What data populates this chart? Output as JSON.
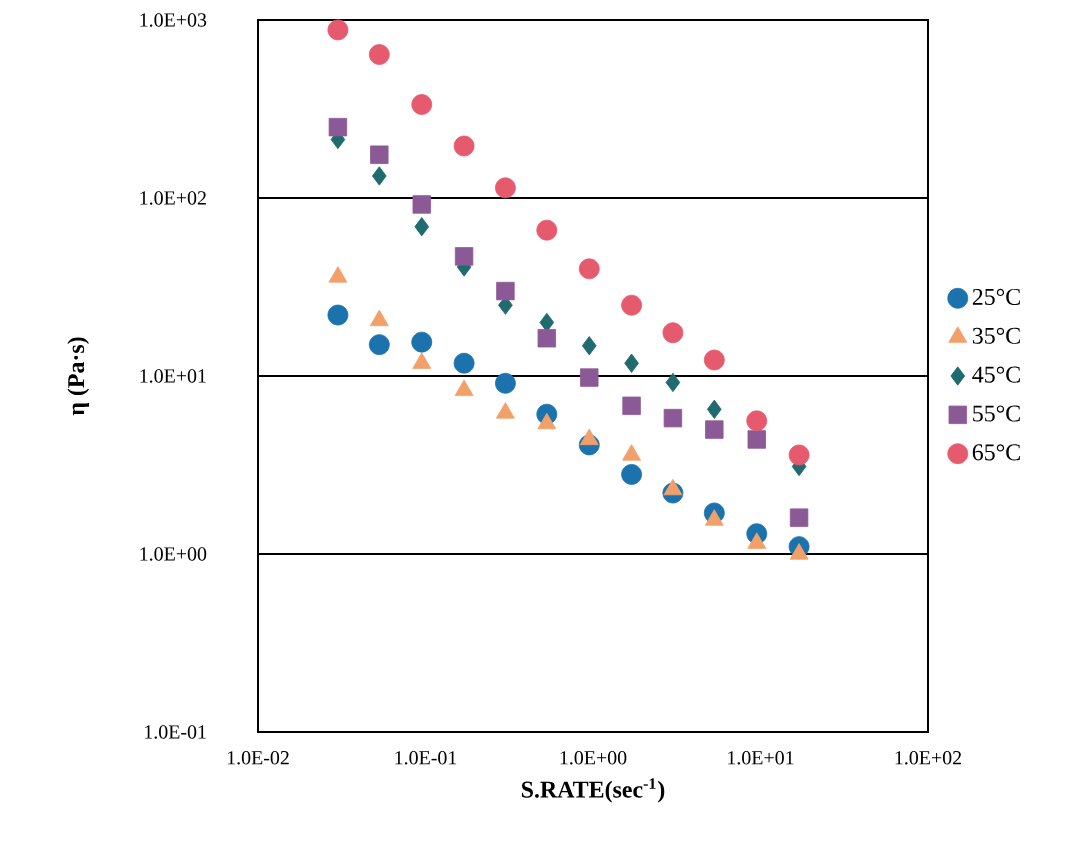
{
  "chart_data": {
    "type": "scatter",
    "xlabel": "S.RATE(sec$^{-1}$)",
    "ylabel": "η (Pa·s)",
    "x": [
      0.03,
      0.053,
      0.095,
      0.17,
      0.3,
      0.53,
      0.95,
      1.7,
      3,
      5.3,
      9.5,
      17
    ],
    "series": [
      {
        "name": "25°C",
        "color": "#1b72ad",
        "marker": "circle",
        "values": [
          22,
          15,
          15.5,
          11.8,
          9.1,
          6.1,
          4.1,
          2.8,
          2.2,
          1.7,
          1.3,
          1.1
        ]
      },
      {
        "name": "35°C",
        "color": "#f2a06a",
        "marker": "triangle",
        "values": [
          36,
          20.5,
          11.8,
          8.3,
          6.2,
          5.4,
          4.4,
          3.6,
          2.3,
          1.55,
          1.15,
          1.0
        ]
      },
      {
        "name": "45°C",
        "color": "#1f6b6e",
        "marker": "diamond",
        "values": [
          213,
          133,
          69,
          41,
          25,
          20,
          14.8,
          11.8,
          9.2,
          6.5,
          null,
          3.1
        ]
      },
      {
        "name": "55°C",
        "color": "#8b5a96",
        "marker": "square",
        "values": [
          250,
          175,
          92,
          47,
          30,
          16.3,
          9.8,
          6.8,
          5.8,
          5.0,
          4.4,
          1.6
        ]
      },
      {
        "name": "65°C",
        "color": "#e65a6e",
        "marker": "circle",
        "values": [
          880,
          640,
          335,
          196,
          114,
          66,
          40,
          25,
          17.5,
          12.3,
          5.6,
          3.6
        ]
      }
    ],
    "log": "xy",
    "xlim": [
      0.01,
      100
    ],
    "ylim": [
      0.1,
      1000
    ],
    "xticks": [
      {
        "value": 0.01,
        "label": "1.0E-02"
      },
      {
        "value": 0.1,
        "label": "1.0E-01"
      },
      {
        "value": 1,
        "label": "1.0E+00"
      },
      {
        "value": 10,
        "label": "1.0E+01"
      },
      {
        "value": 100,
        "label": "1.0E+02"
      }
    ],
    "yticks": [
      {
        "value": 0.1,
        "label": "1.0E-01"
      },
      {
        "value": 1,
        "label": "1.0E+00"
      },
      {
        "value": 10,
        "label": "1.0E+01"
      },
      {
        "value": 100,
        "label": "1.0E+02"
      },
      {
        "value": 1000,
        "label": "1.0E+03"
      }
    ],
    "grid": "y",
    "legend": "right"
  }
}
